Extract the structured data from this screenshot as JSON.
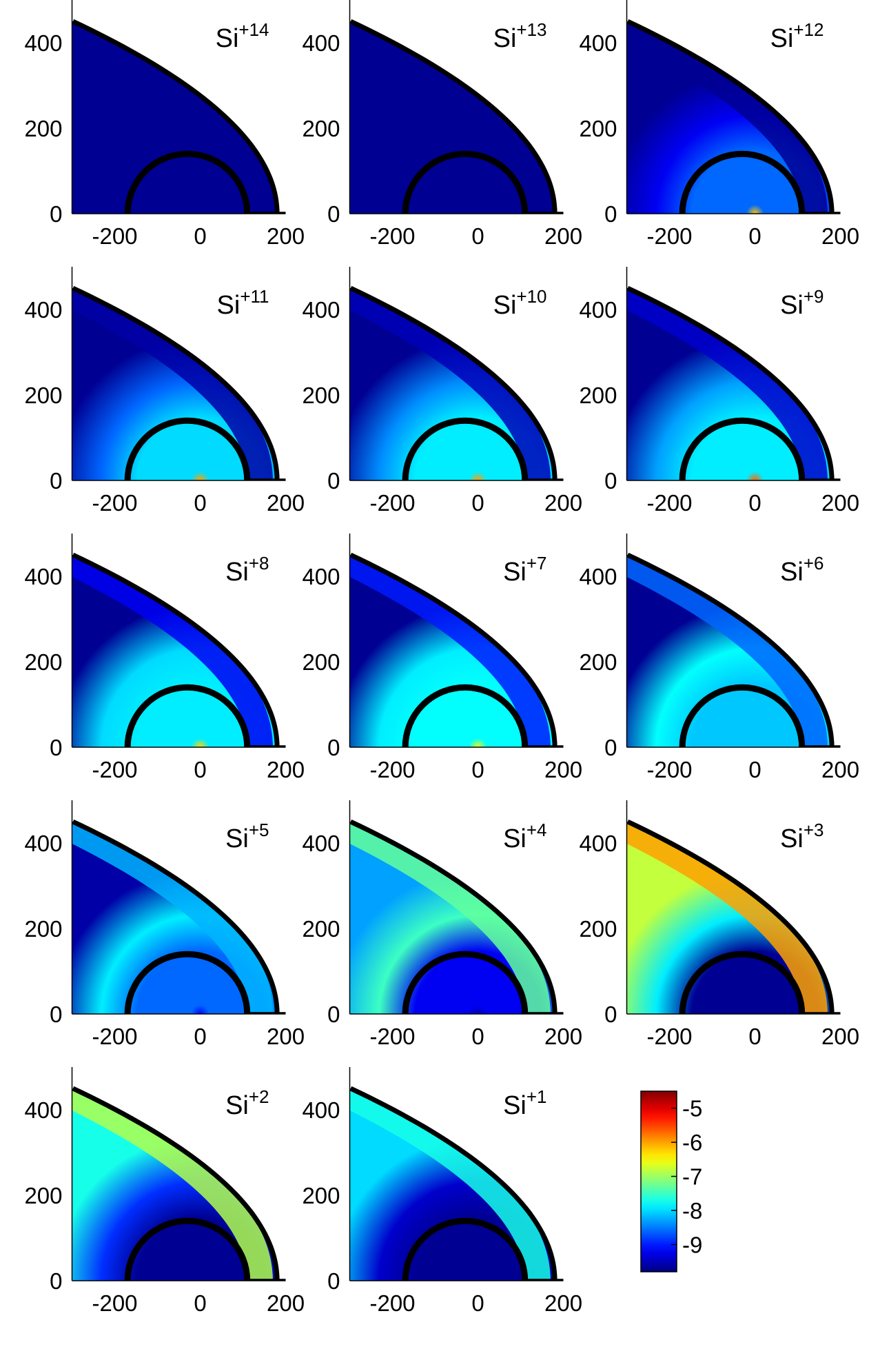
{
  "chart_data": {
    "type": "heatmap",
    "layout": {
      "rows": 5,
      "columns": 3
    },
    "x_axis": {
      "range": [
        -300,
        200
      ],
      "ticks": [
        -200,
        0,
        200
      ],
      "tick_labels": [
        "-200",
        "0",
        "200"
      ]
    },
    "y_axis": {
      "range": [
        0,
        500
      ],
      "ticks": [
        0,
        200,
        400
      ],
      "tick_labels": [
        "0",
        "200",
        "400"
      ]
    },
    "panels": [
      {
        "label_base": "Si",
        "label_sup": "+14",
        "intensity": {
          "inner": -9.7,
          "center": -9.7,
          "outer_band": -9.7,
          "far_field": -9.7,
          "shock": -9.7
        }
      },
      {
        "label_base": "Si",
        "label_sup": "+13",
        "intensity": {
          "inner": -9.7,
          "center": -9.7,
          "outer_band": -9.7,
          "far_field": -9.7,
          "shock": -9.7
        }
      },
      {
        "label_base": "Si",
        "label_sup": "+12",
        "intensity": {
          "inner": -8.6,
          "center": -6.2,
          "outer_band": -9.2,
          "far_field": -9.7,
          "shock": -9.7
        }
      },
      {
        "label_base": "Si",
        "label_sup": "+11",
        "intensity": {
          "inner": -8.0,
          "center": -6.0,
          "outer_band": -8.6,
          "far_field": -9.7,
          "shock": -9.6
        }
      },
      {
        "label_base": "Si",
        "label_sup": "+10",
        "intensity": {
          "inner": -7.9,
          "center": -6.0,
          "outer_band": -8.4,
          "far_field": -9.7,
          "shock": -9.5
        }
      },
      {
        "label_base": "Si",
        "label_sup": "+9",
        "intensity": {
          "inner": -7.9,
          "center": -5.7,
          "outer_band": -8.3,
          "far_field": -9.7,
          "shock": -9.4
        }
      },
      {
        "label_base": "Si",
        "label_sup": "+8",
        "intensity": {
          "inner": -7.9,
          "center": -6.3,
          "outer_band": -8.0,
          "far_field": -9.7,
          "shock": -9.2
        }
      },
      {
        "label_base": "Si",
        "label_sup": "+7",
        "intensity": {
          "inner": -7.8,
          "center": -6.6,
          "outer_band": -7.9,
          "far_field": -9.7,
          "shock": -9.0
        }
      },
      {
        "label_base": "Si",
        "label_sup": "+6",
        "intensity": {
          "inner": -8.1,
          "center": -8.1,
          "outer_band": -7.8,
          "far_field": -9.7,
          "shock": -8.6
        }
      },
      {
        "label_base": "Si",
        "label_sup": "+5",
        "intensity": {
          "inner": -8.6,
          "center": -9.1,
          "outer_band": -7.9,
          "far_field": -9.6,
          "shock": -8.2
        }
      },
      {
        "label_base": "Si",
        "label_sup": "+4",
        "intensity": {
          "inner": -9.2,
          "center": -9.5,
          "outer_band": -7.5,
          "far_field": -8.3,
          "shock": -7.3
        }
      },
      {
        "label_base": "Si",
        "label_sup": "+3",
        "intensity": {
          "inner": -9.7,
          "center": -9.7,
          "outer_band": -7.9,
          "far_field": -6.8,
          "shock": -6.0
        }
      },
      {
        "label_base": "Si",
        "label_sup": "+2",
        "intensity": {
          "inner": -9.7,
          "center": -9.7,
          "outer_band": -8.9,
          "far_field": -7.7,
          "shock": -6.9
        }
      },
      {
        "label_base": "Si",
        "label_sup": "+1",
        "intensity": {
          "inner": -9.7,
          "center": -9.7,
          "outer_band": -9.4,
          "far_field": -8.0,
          "shock": -7.7
        }
      }
    ],
    "colorbar": {
      "range": [
        -9.8,
        -4.5
      ],
      "ticks": [
        -5,
        -6,
        -7,
        -8,
        -9
      ],
      "tick_labels": [
        "-5",
        "-6",
        "-7",
        "-8",
        "-9"
      ]
    }
  }
}
